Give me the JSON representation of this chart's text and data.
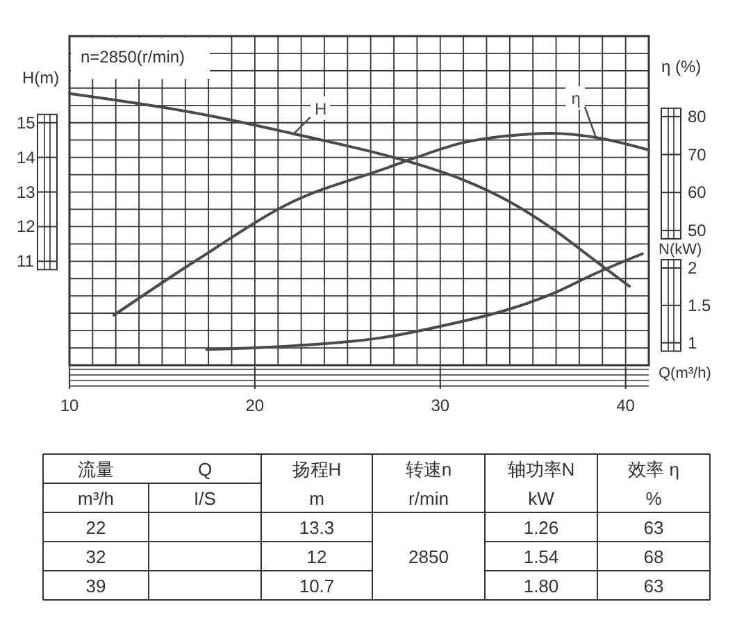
{
  "chart_data": [
    {
      "type": "line",
      "xlabel": "Q(m³/h)",
      "ylabel": "H(m)",
      "y2label": "η (%)",
      "y3label": "N(kW)",
      "annotations": [
        "n=2850(r/min)"
      ],
      "xlim": [
        10,
        41.25
      ],
      "xticks": [
        10,
        {
          "value": 11.25,
          "label": null
        },
        {
          "value": 12.5,
          "label": null
        },
        {
          "value": 13.75,
          "label": null
        },
        {
          "value": 15,
          "label": null
        },
        {
          "value": 16.25,
          "label": null
        },
        {
          "value": 17.5,
          "label": null
        },
        {
          "value": 18.75,
          "label": null
        },
        20,
        {
          "value": 21.25,
          "label": null
        },
        {
          "value": 22.5,
          "label": null
        },
        {
          "value": 23.75,
          "label": null
        },
        {
          "value": 25,
          "label": null
        },
        {
          "value": 26.25,
          "label": null
        },
        {
          "value": 27.5,
          "label": null
        },
        {
          "value": 28.75,
          "label": null
        },
        30,
        {
          "value": 31.25,
          "label": null
        },
        {
          "value": 32.5,
          "label": null
        },
        {
          "value": 33.75,
          "label": null
        },
        {
          "value": 35,
          "label": null
        },
        {
          "value": 36.25,
          "label": null
        },
        {
          "value": 37.5,
          "label": null
        },
        {
          "value": 38.75,
          "label": null
        },
        40
      ],
      "ylim": [
        8,
        17.5
      ],
      "yticks": [
        {
          "value": 8.5,
          "label": null
        },
        {
          "value": 9,
          "label": null
        },
        {
          "value": 9.5,
          "label": null
        },
        {
          "value": 10,
          "label": null
        },
        {
          "value": 10.5,
          "label": null
        },
        11,
        {
          "value": 11.5,
          "label": null
        },
        12,
        {
          "value": 12.5,
          "label": null
        },
        13,
        {
          "value": 13.5,
          "label": null
        },
        14,
        {
          "value": 14.5,
          "label": null
        },
        15,
        {
          "value": 15.5,
          "label": null
        },
        {
          "value": 16,
          "label": null
        },
        {
          "value": 16.5,
          "label": null
        },
        {
          "value": 17,
          "label": null
        }
      ],
      "y2lim": [
        14.5,
        101.2
      ],
      "y2ticks": [
        50,
        60,
        70,
        80
      ],
      "y3lim": [
        0.7,
        5.1
      ],
      "y3ticks": [
        1,
        1.5,
        2
      ],
      "grid": true,
      "line_style": "solid",
      "series": [
        {
          "name": "H",
          "color": "#4a4a4a",
          "x": [
            10,
            17.2,
            22.1,
            26.9,
            28.8,
            31.2,
            33.6,
            36.0,
            38.4,
            40.2
          ],
          "values": [
            15.84,
            15.24,
            14.68,
            14.08,
            13.8,
            13.36,
            12.76,
            11.96,
            11.0,
            10.28
          ]
        },
        {
          "name": "η",
          "color": "#4a4a4a",
          "axis": "y2",
          "x": [
            12.4,
            16.9,
            22.1,
            26.9,
            28.8,
            31.2,
            33.6,
            36.0,
            38.4,
            41.25
          ],
          "values": [
            27.7,
            42.3,
            57.7,
            66.1,
            69.4,
            73.1,
            74.9,
            75.6,
            74.5,
            71.2
          ]
        },
        {
          "color": "#4a4a4a",
          "axis": "y3",
          "x": [
            17.4,
            22.1,
            26.9,
            30,
            33.6,
            36.0,
            38.4,
            40.9
          ],
          "values": [
            0.91,
            0.96,
            1.07,
            1.22,
            1.44,
            1.65,
            1.93,
            2.19
          ]
        }
      ]
    },
    {
      "type": "other",
      "annotations": [
        "流量",
        "Q",
        "扬程H",
        "转速n",
        "轴功率N",
        "效率 η",
        "m³/h",
        "I/S",
        "m",
        "r/min",
        "kW",
        "%",
        "22",
        "13.3",
        "1.26",
        "63",
        "32",
        "12",
        "1.54",
        "68",
        "39",
        "10.7",
        "1.80",
        "63",
        "2850"
      ]
    }
  ]
}
